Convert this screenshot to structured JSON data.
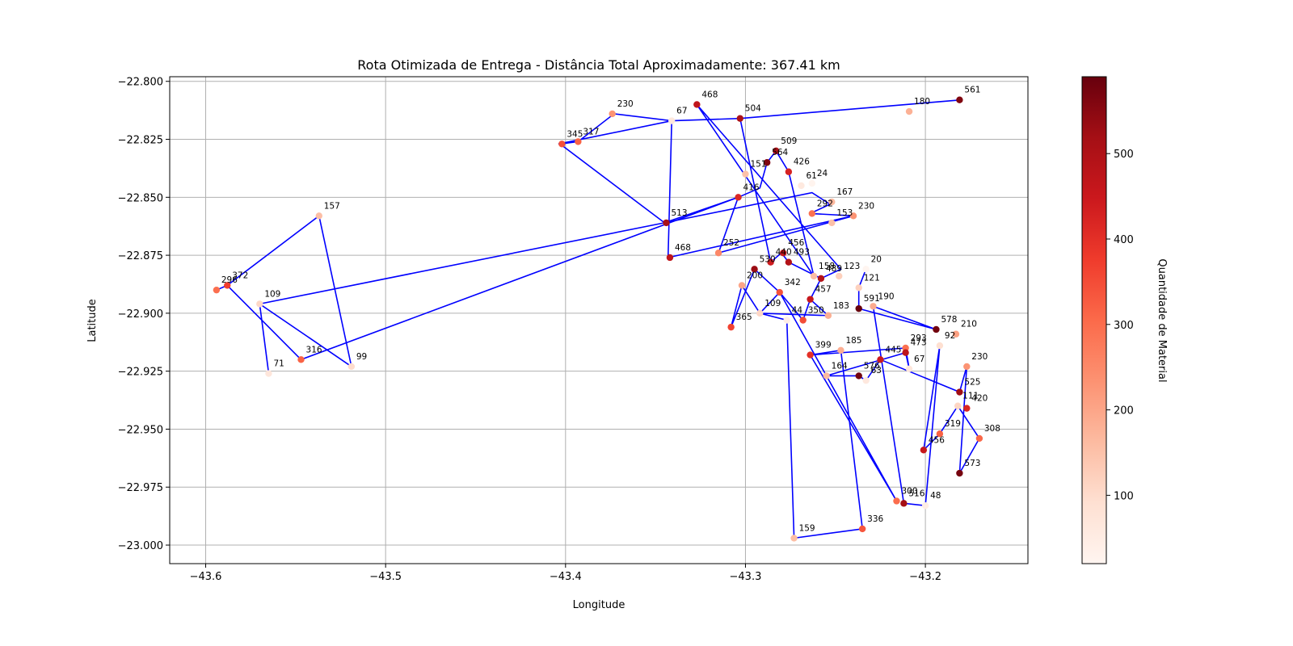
{
  "chart_data": {
    "type": "scatter",
    "title": "Rota Otimizada de Entrega - Distância Total Aproximadamente: 367.41 km",
    "xlabel": "Longitude",
    "ylabel": "Latitude",
    "xlim": [
      -43.62,
      -43.143
    ],
    "ylim": [
      -23.008,
      -22.798
    ],
    "xticks": [
      -43.6,
      -43.5,
      -43.4,
      -43.3,
      -43.2
    ],
    "xtick_labels": [
      "−43.6",
      "−43.5",
      "−43.4",
      "−43.3",
      "−43.2"
    ],
    "yticks": [
      -22.8,
      -22.825,
      -22.85,
      -22.875,
      -22.9,
      -22.925,
      -22.95,
      -22.975,
      -23.0
    ],
    "ytick_labels": [
      "−22.800",
      "−22.825",
      "−22.850",
      "−22.875",
      "−22.900",
      "−22.925",
      "−22.950",
      "−22.975",
      "−23.000"
    ],
    "grid": true,
    "route_color": "#0000ff",
    "colorbar": {
      "label": "Quantidade de Material",
      "min": 20,
      "max": 590,
      "ticks": [
        100,
        200,
        300,
        400,
        500
      ],
      "colormap": "Reds"
    },
    "points": [
      {
        "x": -43.327,
        "y": -22.81,
        "v": 468
      },
      {
        "x": -43.181,
        "y": -22.808,
        "v": 561
      },
      {
        "x": -43.209,
        "y": -22.813,
        "v": 180
      },
      {
        "x": -43.303,
        "y": -22.816,
        "v": 504
      },
      {
        "x": -43.341,
        "y": -22.817,
        "v": 67
      },
      {
        "x": -43.374,
        "y": -22.814,
        "v": 230
      },
      {
        "x": -43.402,
        "y": -22.827,
        "v": 345
      },
      {
        "x": -43.393,
        "y": -22.826,
        "v": 317
      },
      {
        "x": -43.283,
        "y": -22.83,
        "v": 509
      },
      {
        "x": -43.288,
        "y": -22.835,
        "v": 564
      },
      {
        "x": -43.276,
        "y": -22.839,
        "v": 426
      },
      {
        "x": -43.3,
        "y": -22.84,
        "v": 151
      },
      {
        "x": -43.269,
        "y": -22.845,
        "v": 61
      },
      {
        "x": -43.263,
        "y": -22.844,
        "v": 24
      },
      {
        "x": -43.304,
        "y": -22.85,
        "v": 416
      },
      {
        "x": -43.252,
        "y": -22.852,
        "v": 167
      },
      {
        "x": -43.263,
        "y": -22.857,
        "v": 292
      },
      {
        "x": -43.252,
        "y": -22.861,
        "v": 153
      },
      {
        "x": -43.24,
        "y": -22.858,
        "v": 230
      },
      {
        "x": -43.344,
        "y": -22.861,
        "v": 513
      },
      {
        "x": -43.342,
        "y": -22.876,
        "v": 468
      },
      {
        "x": -43.315,
        "y": -22.874,
        "v": 252
      },
      {
        "x": -43.279,
        "y": -22.874,
        "v": 456
      },
      {
        "x": -43.286,
        "y": -22.878,
        "v": 440
      },
      {
        "x": -43.276,
        "y": -22.878,
        "v": 493
      },
      {
        "x": -43.295,
        "y": -22.881,
        "v": 530
      },
      {
        "x": -43.258,
        "y": -22.885,
        "v": 489
      },
      {
        "x": -43.262,
        "y": -22.884,
        "v": 158
      },
      {
        "x": -43.248,
        "y": -22.884,
        "v": 123
      },
      {
        "x": -43.233,
        "y": -22.881,
        "v": 20
      },
      {
        "x": -43.237,
        "y": -22.889,
        "v": 121
      },
      {
        "x": -43.302,
        "y": -22.888,
        "v": 200
      },
      {
        "x": -43.281,
        "y": -22.891,
        "v": 342
      },
      {
        "x": -43.264,
        "y": -22.894,
        "v": 457
      },
      {
        "x": -43.237,
        "y": -22.898,
        "v": 591
      },
      {
        "x": -43.229,
        "y": -22.897,
        "v": 190
      },
      {
        "x": -43.308,
        "y": -22.906,
        "v": 365
      },
      {
        "x": -43.292,
        "y": -22.9,
        "v": 109
      },
      {
        "x": -43.277,
        "y": -22.903,
        "v": 44
      },
      {
        "x": -43.268,
        "y": -22.903,
        "v": 350
      },
      {
        "x": -43.254,
        "y": -22.901,
        "v": 183
      },
      {
        "x": -43.194,
        "y": -22.907,
        "v": 578
      },
      {
        "x": -43.183,
        "y": -22.909,
        "v": 210
      },
      {
        "x": -43.264,
        "y": -22.918,
        "v": 399
      },
      {
        "x": -43.247,
        "y": -22.916,
        "v": 185
      },
      {
        "x": -43.211,
        "y": -22.915,
        "v": 293
      },
      {
        "x": -43.211,
        "y": -22.917,
        "v": 473
      },
      {
        "x": -43.192,
        "y": -22.914,
        "v": 92
      },
      {
        "x": -43.225,
        "y": -22.92,
        "v": 445
      },
      {
        "x": -43.209,
        "y": -22.924,
        "v": 67
      },
      {
        "x": -43.255,
        "y": -22.927,
        "v": 164
      },
      {
        "x": -43.237,
        "y": -22.927,
        "v": 576
      },
      {
        "x": -43.233,
        "y": -22.929,
        "v": 63
      },
      {
        "x": -43.177,
        "y": -22.923,
        "v": 230
      },
      {
        "x": -43.181,
        "y": -22.934,
        "v": 525
      },
      {
        "x": -43.177,
        "y": -22.941,
        "v": 420
      },
      {
        "x": -43.182,
        "y": -22.94,
        "v": 111
      },
      {
        "x": -43.192,
        "y": -22.952,
        "v": 319
      },
      {
        "x": -43.17,
        "y": -22.954,
        "v": 308
      },
      {
        "x": -43.201,
        "y": -22.959,
        "v": 456
      },
      {
        "x": -43.181,
        "y": -22.969,
        "v": 573
      },
      {
        "x": -43.216,
        "y": -22.981,
        "v": 300
      },
      {
        "x": -43.212,
        "y": -22.982,
        "v": 516
      },
      {
        "x": -43.2,
        "y": -22.983,
        "v": 48
      },
      {
        "x": -43.235,
        "y": -22.993,
        "v": 336
      },
      {
        "x": -43.273,
        "y": -22.997,
        "v": 159
      },
      {
        "x": -43.537,
        "y": -22.858,
        "v": 157
      },
      {
        "x": -43.588,
        "y": -22.888,
        "v": 372
      },
      {
        "x": -43.594,
        "y": -22.89,
        "v": 296
      },
      {
        "x": -43.57,
        "y": -22.896,
        "v": 109
      },
      {
        "x": -43.565,
        "y": -22.926,
        "v": 71
      },
      {
        "x": -43.547,
        "y": -22.92,
        "v": 316
      },
      {
        "x": -43.519,
        "y": -22.923,
        "v": 99
      }
    ],
    "route": [
      [
        -43.345,
        -22.861
      ],
      [
        -43.403,
        -22.827
      ],
      [
        -43.393,
        -22.826
      ],
      [
        -43.373,
        -22.814
      ],
      [
        -43.341,
        -22.817
      ],
      [
        -43.343,
        -22.876
      ],
      [
        -43.24,
        -22.858
      ],
      [
        -43.264,
        -22.857
      ],
      [
        -43.253,
        -22.853
      ],
      [
        -43.263,
        -22.848
      ],
      [
        -43.345,
        -22.861
      ],
      [
        -43.304,
        -22.85
      ],
      [
        -43.292,
        -22.846
      ],
      [
        -43.288,
        -22.835
      ],
      [
        -43.283,
        -22.83
      ],
      [
        -43.276,
        -22.839
      ],
      [
        -43.262,
        -22.884
      ],
      [
        -43.327,
        -22.81
      ],
      [
        -43.247,
        -22.881
      ],
      [
        -43.258,
        -22.885
      ],
      [
        -43.276,
        -22.878
      ],
      [
        -43.28,
        -22.874
      ],
      [
        -43.286,
        -22.878
      ],
      [
        -43.303,
        -22.816
      ],
      [
        -43.18,
        -22.808
      ],
      [
        -43.303,
        -22.816
      ],
      [
        -43.341,
        -22.817
      ],
      [
        -43.404,
        -22.827
      ]
    ],
    "route2": [
      [
        -43.304,
        -22.85
      ],
      [
        -43.315,
        -22.874
      ],
      [
        -43.24,
        -22.858
      ]
    ],
    "route_west": [
      [
        -43.345,
        -22.861
      ],
      [
        -43.57,
        -22.896
      ],
      [
        -43.565,
        -22.926
      ],
      [
        -43.57,
        -22.896
      ],
      [
        -43.519,
        -22.923
      ],
      [
        -43.537,
        -22.858
      ],
      [
        -43.588,
        -22.888
      ],
      [
        -43.594,
        -22.89
      ],
      [
        -43.588,
        -22.888
      ],
      [
        -43.547,
        -22.92
      ],
      [
        -43.304,
        -22.85
      ]
    ],
    "route_south": [
      [
        -43.295,
        -22.881
      ],
      [
        -43.308,
        -22.906
      ],
      [
        -43.302,
        -22.888
      ],
      [
        -43.292,
        -22.9
      ],
      [
        -43.277,
        -22.903
      ],
      [
        -43.273,
        -22.997
      ],
      [
        -43.235,
        -22.993
      ],
      [
        -43.247,
        -22.916
      ],
      [
        -43.264,
        -22.918
      ],
      [
        -43.211,
        -22.915
      ],
      [
        -43.209,
        -22.924
      ],
      [
        -43.211,
        -22.917
      ],
      [
        -43.255,
        -22.927
      ],
      [
        -43.237,
        -22.927
      ],
      [
        -43.233,
        -22.929
      ],
      [
        -43.225,
        -22.92
      ],
      [
        -43.181,
        -22.934
      ],
      [
        -43.177,
        -22.923
      ],
      [
        -43.181,
        -22.969
      ],
      [
        -43.17,
        -22.954
      ],
      [
        -43.182,
        -22.94
      ],
      [
        -43.192,
        -22.952
      ],
      [
        -43.201,
        -22.959
      ],
      [
        -43.192,
        -22.914
      ],
      [
        -43.2,
        -22.983
      ],
      [
        -43.212,
        -22.982
      ],
      [
        -43.229,
        -22.897
      ],
      [
        -43.194,
        -22.907
      ],
      [
        -43.237,
        -22.898
      ],
      [
        -43.237,
        -22.889
      ],
      [
        -43.233,
        -22.881
      ]
    ],
    "route_mid": [
      [
        -43.295,
        -22.881
      ],
      [
        -43.281,
        -22.891
      ],
      [
        -43.268,
        -22.903
      ],
      [
        -43.264,
        -22.894
      ],
      [
        -43.258,
        -22.885
      ],
      [
        -43.264,
        -22.894
      ],
      [
        -43.254,
        -22.901
      ],
      [
        -43.292,
        -22.9
      ],
      [
        -43.281,
        -22.891
      ],
      [
        -43.216,
        -22.981
      ],
      [
        -43.264,
        -22.918
      ]
    ]
  }
}
